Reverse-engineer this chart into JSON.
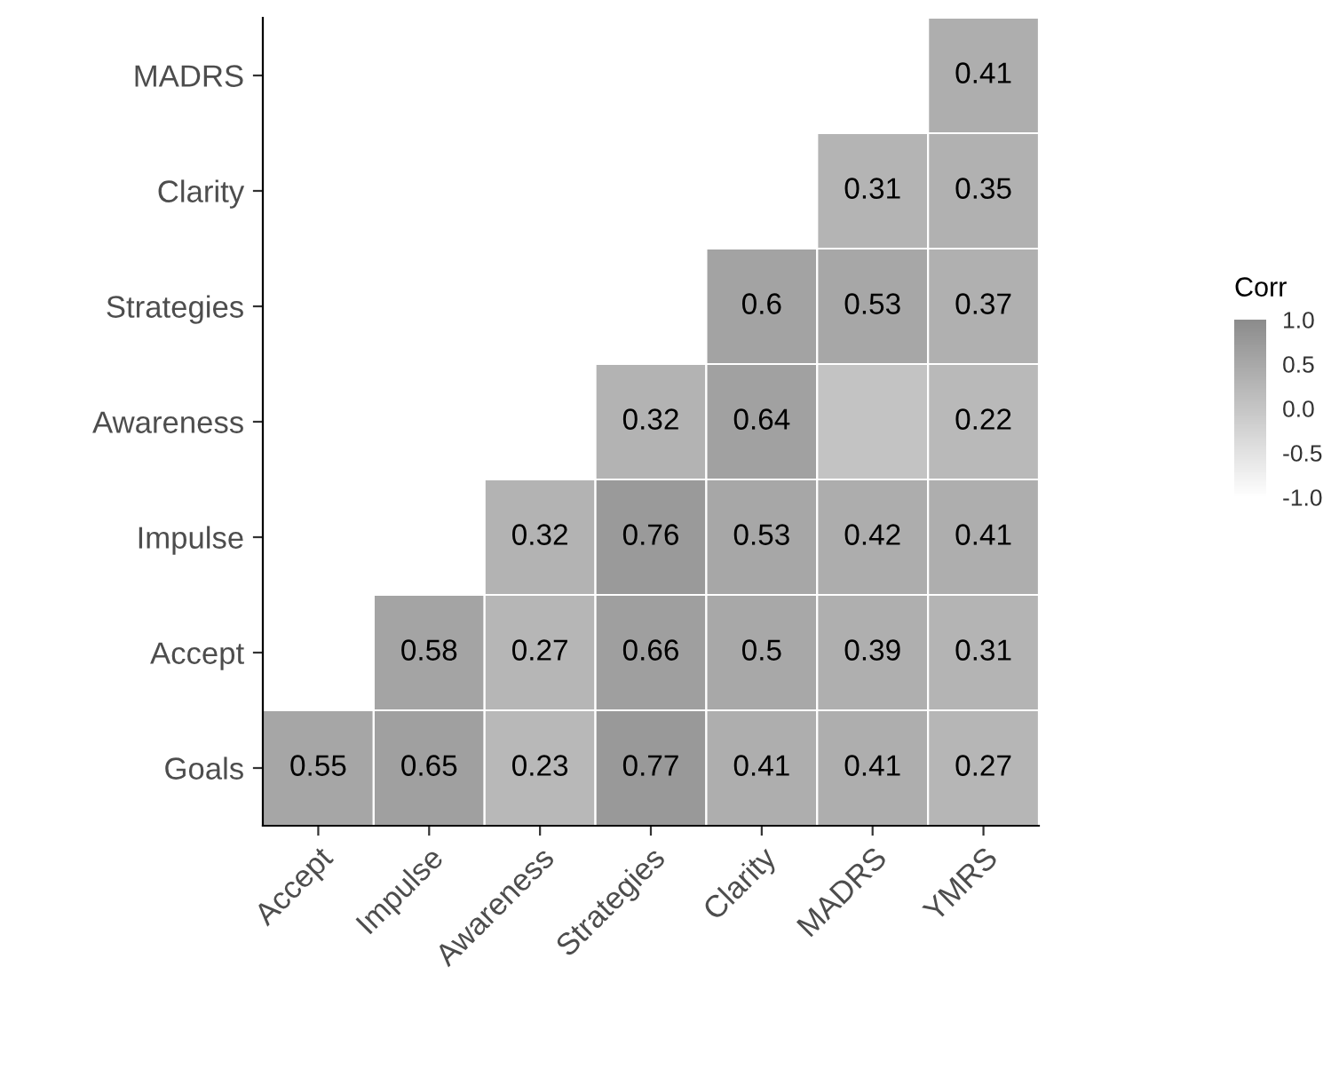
{
  "chart_data": {
    "type": "heatmap",
    "categories": [
      "Accept",
      "Impulse",
      "Awareness",
      "Strategies",
      "Clarity",
      "MADRS",
      "YMRS"
    ],
    "y_categories": [
      "MADRS",
      "Clarity",
      "Strategies",
      "Awareness",
      "Impulse",
      "Accept",
      "Goals"
    ],
    "cells": [
      [
        null,
        null,
        null,
        null,
        null,
        null,
        0.41
      ],
      [
        null,
        null,
        null,
        null,
        null,
        0.31,
        0.35
      ],
      [
        null,
        null,
        null,
        null,
        0.6,
        0.53,
        0.37
      ],
      [
        null,
        null,
        null,
        0.32,
        0.64,
        0.05,
        0.22
      ],
      [
        null,
        null,
        0.32,
        0.76,
        0.53,
        0.42,
        0.41
      ],
      [
        null,
        0.58,
        0.27,
        0.66,
        0.5,
        0.39,
        0.31
      ],
      [
        0.55,
        0.65,
        0.23,
        0.77,
        0.41,
        0.41,
        0.27
      ]
    ],
    "cell_labels": [
      [
        null,
        null,
        null,
        null,
        null,
        null,
        "0.41"
      ],
      [
        null,
        null,
        null,
        null,
        null,
        "0.31",
        "0.35"
      ],
      [
        null,
        null,
        null,
        null,
        "0.6",
        "0.53",
        "0.37"
      ],
      [
        null,
        null,
        null,
        "0.32",
        "0.64",
        null,
        "0.22"
      ],
      [
        null,
        null,
        "0.32",
        "0.76",
        "0.53",
        "0.42",
        "0.41"
      ],
      [
        null,
        "0.58",
        "0.27",
        "0.66",
        "0.5",
        "0.39",
        "0.31"
      ],
      [
        "0.55",
        "0.65",
        "0.23",
        "0.77",
        "0.41",
        "0.41",
        "0.27"
      ]
    ],
    "clabel": "Corr",
    "clim": [
      -1,
      1
    ],
    "cticks": [
      {
        "value": 1,
        "label": "1.0"
      },
      {
        "value": 0.5,
        "label": "0.5"
      },
      {
        "value": 0,
        "label": "0.0"
      },
      {
        "value": -0.5,
        "label": "-0.5"
      },
      {
        "value": -1,
        "label": "-1.0"
      }
    ]
  }
}
